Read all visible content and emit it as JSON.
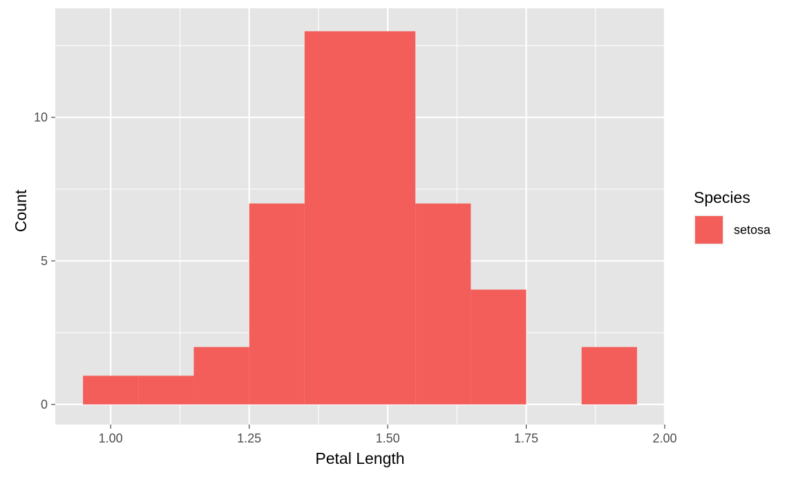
{
  "chart_data": {
    "type": "bar",
    "xlabel": "Petal Length",
    "ylabel": "Count",
    "xlim": [
      0.9,
      2.0
    ],
    "ylim": [
      -0.7,
      13.8
    ],
    "x_ticks": [
      "1.00",
      "1.25",
      "1.50",
      "1.75",
      "2.00"
    ],
    "x_tick_values": [
      1.0,
      1.25,
      1.5,
      1.75,
      2.0
    ],
    "y_ticks": [
      "0",
      "5",
      "10"
    ],
    "y_tick_values": [
      0,
      5,
      10
    ],
    "grid": true,
    "bins": [
      {
        "x0": 0.95,
        "x1": 1.05,
        "count": 1
      },
      {
        "x0": 1.05,
        "x1": 1.15,
        "count": 1
      },
      {
        "x0": 1.15,
        "x1": 1.25,
        "count": 2
      },
      {
        "x0": 1.25,
        "x1": 1.35,
        "count": 7
      },
      {
        "x0": 1.35,
        "x1": 1.45,
        "count": 13
      },
      {
        "x0": 1.45,
        "x1": 1.55,
        "count": 13
      },
      {
        "x0": 1.55,
        "x1": 1.65,
        "count": 7
      },
      {
        "x0": 1.65,
        "x1": 1.75,
        "count": 4
      },
      {
        "x0": 1.75,
        "x1": 1.85,
        "count": 0
      },
      {
        "x0": 1.85,
        "x1": 1.95,
        "count": 2
      }
    ],
    "series": [
      {
        "name": "setosa",
        "color": "#F35E5A"
      }
    ],
    "legend": {
      "title": "Species",
      "position": "right",
      "items": [
        {
          "label": "setosa",
          "color": "#F35E5A"
        }
      ]
    },
    "panel_background": "#E5E5E5",
    "grid_color": "#FFFFFF"
  }
}
